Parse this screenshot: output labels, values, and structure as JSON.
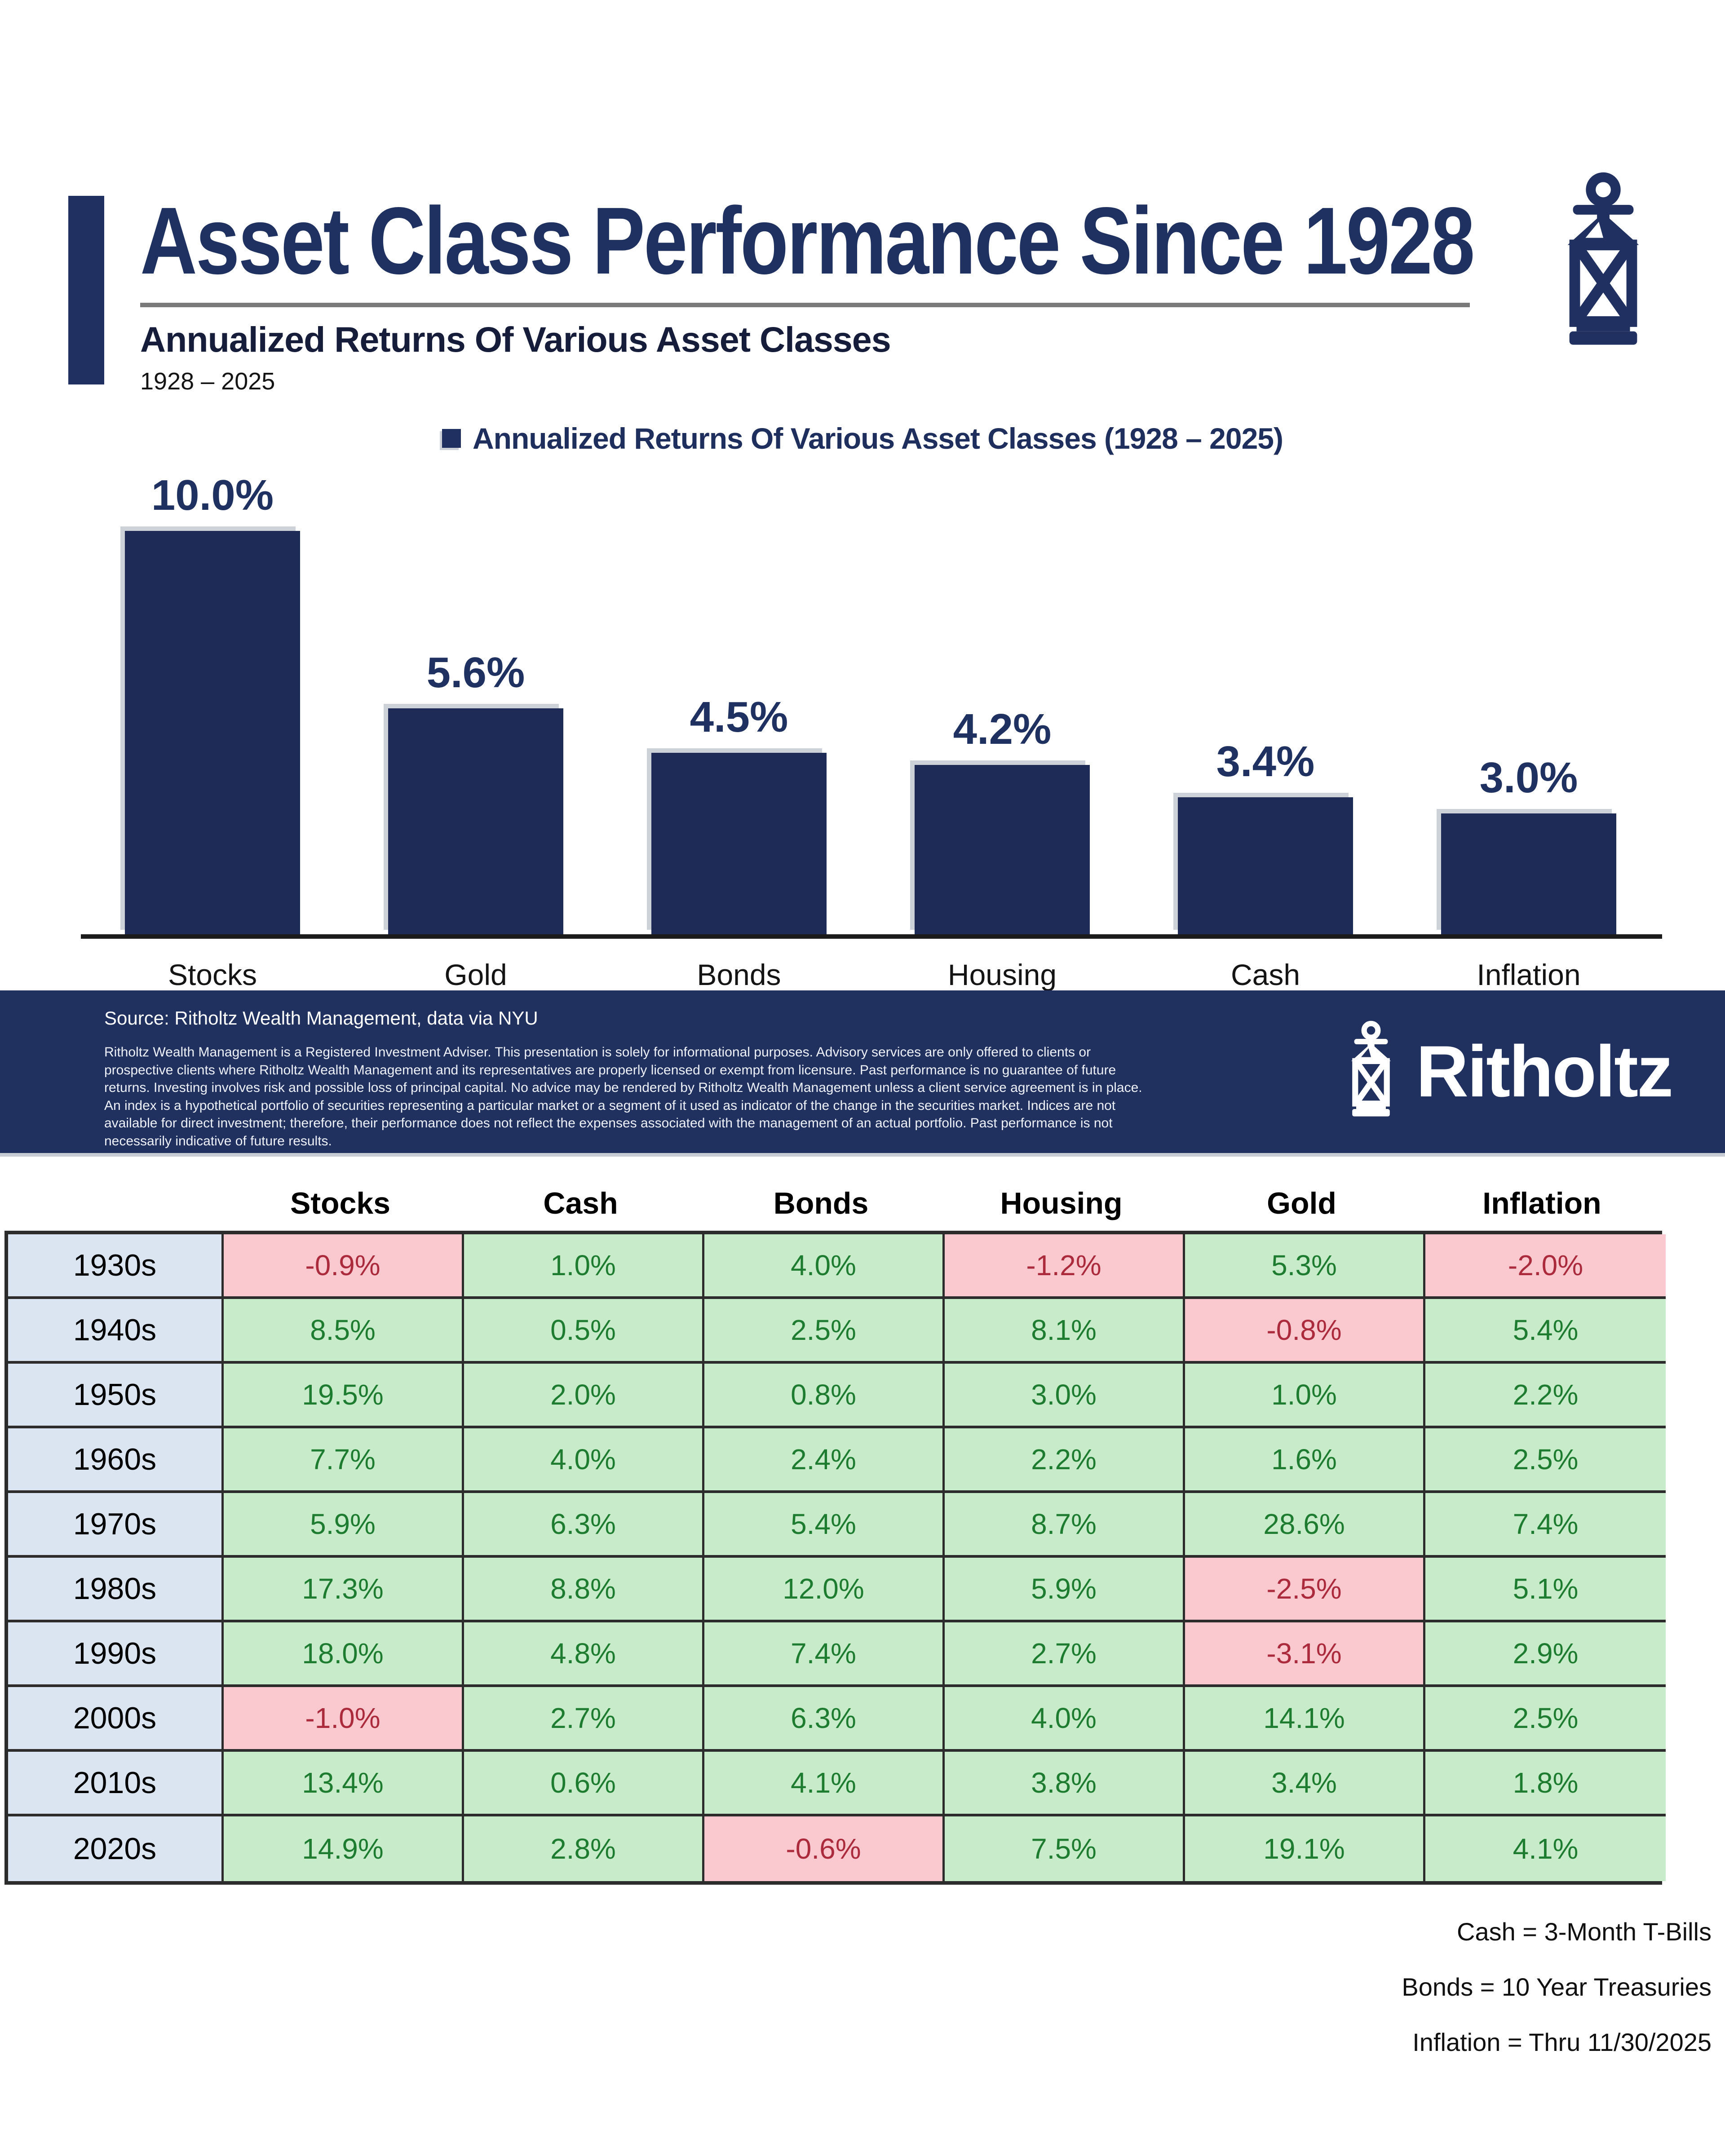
{
  "header": {
    "title": "Asset Class Performance Since 1928",
    "subtitle": "Annualized Returns Of Various Asset Classes",
    "date_range": "1928 – 2025"
  },
  "legend": {
    "label": "Annualized Returns Of Various Asset Classes (1928 – 2025)"
  },
  "chart_data": [
    {
      "type": "bar",
      "title": "Annualized Returns Of Various Asset Classes (1928 – 2025)",
      "categories": [
        "Stocks",
        "Gold",
        "Bonds",
        "Housing",
        "Cash",
        "Inflation"
      ],
      "values": [
        10.0,
        5.6,
        4.5,
        4.2,
        3.4,
        3.0
      ],
      "value_labels": [
        "10.0%",
        "5.6%",
        "4.5%",
        "4.2%",
        "3.4%",
        "3.0%"
      ],
      "ylabel": "",
      "xlabel": "",
      "ylim": [
        0,
        11
      ],
      "grid": false,
      "legend_position": "top-center",
      "bar_color": "#1f2b57"
    },
    {
      "type": "table",
      "columns": [
        "Stocks",
        "Cash",
        "Bonds",
        "Housing",
        "Gold",
        "Inflation"
      ],
      "rows": [
        {
          "decade": "1930s",
          "values": [
            "-0.9%",
            "1.0%",
            "4.0%",
            "-1.2%",
            "5.3%",
            "-2.0%"
          ]
        },
        {
          "decade": "1940s",
          "values": [
            "8.5%",
            "0.5%",
            "2.5%",
            "8.1%",
            "-0.8%",
            "5.4%"
          ]
        },
        {
          "decade": "1950s",
          "values": [
            "19.5%",
            "2.0%",
            "0.8%",
            "3.0%",
            "1.0%",
            "2.2%"
          ]
        },
        {
          "decade": "1960s",
          "values": [
            "7.7%",
            "4.0%",
            "2.4%",
            "2.2%",
            "1.6%",
            "2.5%"
          ]
        },
        {
          "decade": "1970s",
          "values": [
            "5.9%",
            "6.3%",
            "5.4%",
            "8.7%",
            "28.6%",
            "7.4%"
          ]
        },
        {
          "decade": "1980s",
          "values": [
            "17.3%",
            "8.8%",
            "12.0%",
            "5.9%",
            "-2.5%",
            "5.1%"
          ]
        },
        {
          "decade": "1990s",
          "values": [
            "18.0%",
            "4.8%",
            "7.4%",
            "2.7%",
            "-3.1%",
            "2.9%"
          ]
        },
        {
          "decade": "2000s",
          "values": [
            "-1.0%",
            "2.7%",
            "6.3%",
            "4.0%",
            "14.1%",
            "2.5%"
          ]
        },
        {
          "decade": "2010s",
          "values": [
            "13.4%",
            "0.6%",
            "4.1%",
            "3.8%",
            "3.4%",
            "1.8%"
          ]
        },
        {
          "decade": "2020s",
          "values": [
            "14.9%",
            "2.8%",
            "-0.6%",
            "7.5%",
            "19.1%",
            "4.1%"
          ]
        }
      ]
    }
  ],
  "footer_band": {
    "source": "Source: Ritholtz Wealth Management, data via NYU",
    "disclaimer": "Ritholtz Wealth Management is a Registered Investment Adviser. This presentation is solely for informational purposes. Advisory services are only offered to clients or prospective clients where Ritholtz Wealth Management and its representatives are properly licensed or exempt from licensure. Past performance is no guarantee of future returns. Investing involves risk and possible loss of principal capital. No advice may be rendered by Ritholtz Wealth Management unless a client service agreement is in place. An index is a hypothetical portfolio of securities representing a particular market or a segment of it used as indicator of the change in the securities market. Indices are not available for direct investment; therefore, their performance does not reflect the expenses associated with the management of an actual portfolio. Past performance is not necessarily indicative of future results.",
    "brand": "Ritholtz"
  },
  "footnotes": [
    "Cash = 3-Month T-Bills",
    "Bonds = 10 Year Treasuries",
    "Inflation = Thru 11/30/2025"
  ],
  "colors": {
    "navy": "#203061",
    "bar_navy": "#1f2b57",
    "title_navy": "#1f3160",
    "rule_gray": "#7b7b7b",
    "positive_bg": "#c8ecca",
    "positive_text": "#1e7c30",
    "negative_bg": "#fac8cf",
    "negative_text": "#ab2a3b",
    "decade_bg": "#dbe5f2",
    "table_border": "#2c2c2c"
  }
}
